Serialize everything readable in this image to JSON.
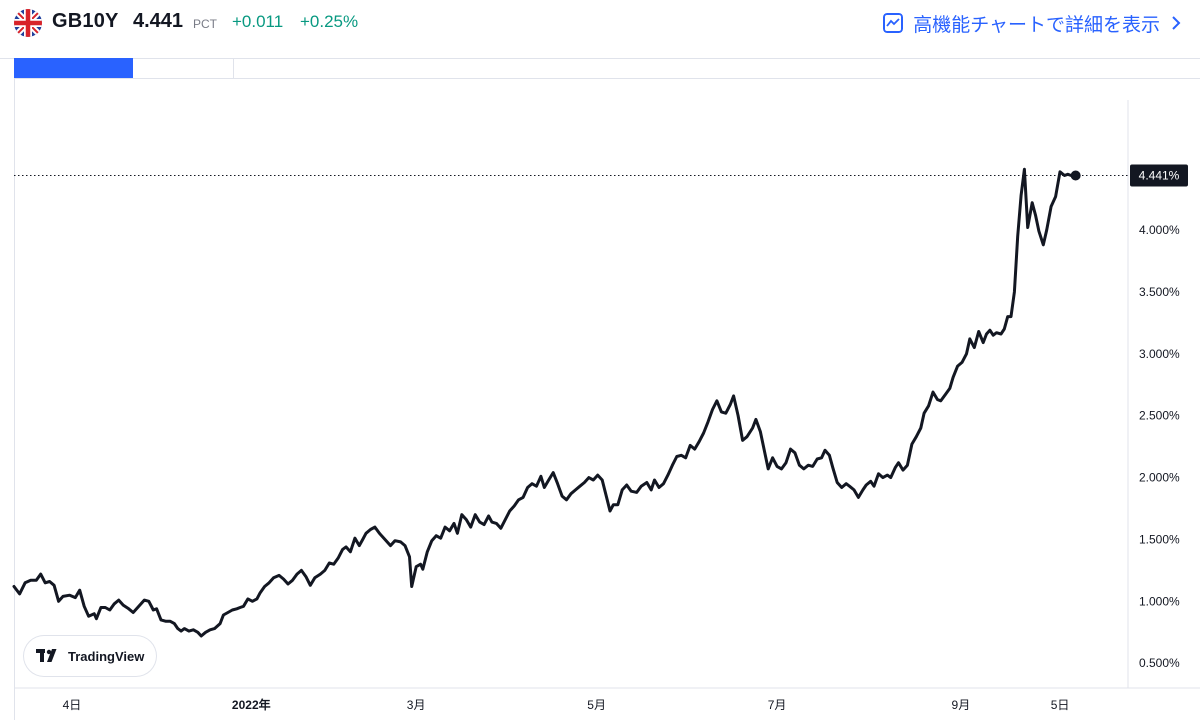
{
  "header": {
    "symbol": "GB10Y",
    "price": "4.441",
    "unit": "PCT",
    "change": "+0.011",
    "change_pct": "+0.25%",
    "advanced_link": "高機能チャートで詳細を表示",
    "flag_icon": "uk-flag-icon",
    "link_icon": "chart-line-icon",
    "chevron_icon": "chevron-right-icon",
    "up_color": "#089981",
    "accent_color": "#2962ff"
  },
  "watermark": {
    "text": "TradingView",
    "icon": "tradingview-logo-icon"
  },
  "chart_data": {
    "type": "line",
    "line_color": "#131722",
    "last_value_label": "4.441%",
    "ylim": [
      0.3,
      5.05
    ],
    "y_ticks": [
      {
        "value": 0.5,
        "label": "0.500%"
      },
      {
        "value": 1.0,
        "label": "1.000%"
      },
      {
        "value": 1.5,
        "label": "1.500%"
      },
      {
        "value": 2.0,
        "label": "2.000%"
      },
      {
        "value": 2.5,
        "label": "2.500%"
      },
      {
        "value": 3.0,
        "label": "3.000%"
      },
      {
        "value": 3.5,
        "label": "3.500%"
      },
      {
        "value": 4.0,
        "label": "4.000%"
      }
    ],
    "x_ticks": [
      {
        "t": 0.052,
        "label": "4日",
        "bold": false
      },
      {
        "t": 0.213,
        "label": "2022年",
        "bold": true
      },
      {
        "t": 0.361,
        "label": "3月",
        "bold": false
      },
      {
        "t": 0.523,
        "label": "5月",
        "bold": false
      },
      {
        "t": 0.685,
        "label": "7月",
        "bold": false
      },
      {
        "t": 0.85,
        "label": "9月",
        "bold": false
      },
      {
        "t": 0.939,
        "label": "5日",
        "bold": false
      }
    ],
    "series": [
      {
        "points": [
          [
            0.0,
            1.12
          ],
          [
            0.005,
            1.06
          ],
          [
            0.01,
            1.15
          ],
          [
            0.015,
            1.17
          ],
          [
            0.02,
            1.17
          ],
          [
            0.024,
            1.22
          ],
          [
            0.028,
            1.15
          ],
          [
            0.032,
            1.16
          ],
          [
            0.036,
            1.13
          ],
          [
            0.04,
            1.0
          ],
          [
            0.044,
            1.04
          ],
          [
            0.05,
            1.05
          ],
          [
            0.055,
            1.03
          ],
          [
            0.059,
            1.09
          ],
          [
            0.063,
            0.96
          ],
          [
            0.067,
            0.88
          ],
          [
            0.072,
            0.9
          ],
          [
            0.074,
            0.86
          ],
          [
            0.078,
            0.95
          ],
          [
            0.082,
            0.95
          ],
          [
            0.086,
            0.93
          ],
          [
            0.09,
            0.98
          ],
          [
            0.094,
            1.01
          ],
          [
            0.098,
            0.97
          ],
          [
            0.103,
            0.94
          ],
          [
            0.107,
            0.91
          ],
          [
            0.112,
            0.96
          ],
          [
            0.117,
            1.01
          ],
          [
            0.121,
            1.0
          ],
          [
            0.125,
            0.93
          ],
          [
            0.128,
            0.94
          ],
          [
            0.132,
            0.85
          ],
          [
            0.136,
            0.84
          ],
          [
            0.14,
            0.84
          ],
          [
            0.144,
            0.82
          ],
          [
            0.147,
            0.78
          ],
          [
            0.15,
            0.76
          ],
          [
            0.153,
            0.78
          ],
          [
            0.157,
            0.76
          ],
          [
            0.161,
            0.77
          ],
          [
            0.165,
            0.75
          ],
          [
            0.168,
            0.72
          ],
          [
            0.172,
            0.75
          ],
          [
            0.176,
            0.77
          ],
          [
            0.18,
            0.78
          ],
          [
            0.185,
            0.82
          ],
          [
            0.188,
            0.89
          ],
          [
            0.192,
            0.91
          ],
          [
            0.196,
            0.93
          ],
          [
            0.2,
            0.94
          ],
          [
            0.203,
            0.95
          ],
          [
            0.206,
            0.96
          ],
          [
            0.21,
            1.02
          ],
          [
            0.214,
            1.0
          ],
          [
            0.218,
            1.02
          ],
          [
            0.221,
            1.07
          ],
          [
            0.225,
            1.12
          ],
          [
            0.229,
            1.15
          ],
          [
            0.233,
            1.19
          ],
          [
            0.238,
            1.21
          ],
          [
            0.242,
            1.18
          ],
          [
            0.246,
            1.14
          ],
          [
            0.25,
            1.17
          ],
          [
            0.254,
            1.22
          ],
          [
            0.258,
            1.25
          ],
          [
            0.262,
            1.2
          ],
          [
            0.266,
            1.13
          ],
          [
            0.27,
            1.19
          ],
          [
            0.275,
            1.22
          ],
          [
            0.279,
            1.25
          ],
          [
            0.283,
            1.31
          ],
          [
            0.287,
            1.3
          ],
          [
            0.291,
            1.35
          ],
          [
            0.295,
            1.42
          ],
          [
            0.298,
            1.44
          ],
          [
            0.302,
            1.4
          ],
          [
            0.306,
            1.51
          ],
          [
            0.31,
            1.45
          ],
          [
            0.313,
            1.5
          ],
          [
            0.316,
            1.55
          ],
          [
            0.32,
            1.58
          ],
          [
            0.324,
            1.6
          ],
          [
            0.328,
            1.55
          ],
          [
            0.333,
            1.5
          ],
          [
            0.338,
            1.45
          ],
          [
            0.342,
            1.49
          ],
          [
            0.347,
            1.48
          ],
          [
            0.351,
            1.45
          ],
          [
            0.355,
            1.36
          ],
          [
            0.357,
            1.12
          ],
          [
            0.361,
            1.28
          ],
          [
            0.365,
            1.3
          ],
          [
            0.367,
            1.26
          ],
          [
            0.371,
            1.4
          ],
          [
            0.375,
            1.49
          ],
          [
            0.379,
            1.53
          ],
          [
            0.383,
            1.51
          ],
          [
            0.387,
            1.6
          ],
          [
            0.391,
            1.57
          ],
          [
            0.395,
            1.63
          ],
          [
            0.398,
            1.55
          ],
          [
            0.402,
            1.7
          ],
          [
            0.406,
            1.66
          ],
          [
            0.41,
            1.6
          ],
          [
            0.414,
            1.7
          ],
          [
            0.418,
            1.64
          ],
          [
            0.422,
            1.62
          ],
          [
            0.426,
            1.69
          ],
          [
            0.429,
            1.64
          ],
          [
            0.433,
            1.63
          ],
          [
            0.437,
            1.59
          ],
          [
            0.441,
            1.66
          ],
          [
            0.445,
            1.73
          ],
          [
            0.449,
            1.77
          ],
          [
            0.453,
            1.82
          ],
          [
            0.457,
            1.84
          ],
          [
            0.461,
            1.92
          ],
          [
            0.465,
            1.95
          ],
          [
            0.469,
            1.93
          ],
          [
            0.473,
            2.01
          ],
          [
            0.476,
            1.92
          ],
          [
            0.48,
            1.98
          ],
          [
            0.484,
            2.04
          ],
          [
            0.488,
            1.95
          ],
          [
            0.492,
            1.85
          ],
          [
            0.496,
            1.82
          ],
          [
            0.5,
            1.87
          ],
          [
            0.504,
            1.9
          ],
          [
            0.508,
            1.93
          ],
          [
            0.512,
            1.96
          ],
          [
            0.516,
            2.0
          ],
          [
            0.52,
            1.98
          ],
          [
            0.524,
            2.02
          ],
          [
            0.528,
            1.98
          ],
          [
            0.532,
            1.84
          ],
          [
            0.535,
            1.73
          ],
          [
            0.538,
            1.78
          ],
          [
            0.542,
            1.78
          ],
          [
            0.546,
            1.9
          ],
          [
            0.55,
            1.94
          ],
          [
            0.554,
            1.89
          ],
          [
            0.559,
            1.88
          ],
          [
            0.563,
            1.93
          ],
          [
            0.568,
            1.96
          ],
          [
            0.572,
            1.9
          ],
          [
            0.575,
            1.98
          ],
          [
            0.579,
            1.92
          ],
          [
            0.583,
            1.95
          ],
          [
            0.587,
            2.02
          ],
          [
            0.591,
            2.1
          ],
          [
            0.595,
            2.17
          ],
          [
            0.599,
            2.18
          ],
          [
            0.603,
            2.16
          ],
          [
            0.607,
            2.26
          ],
          [
            0.611,
            2.23
          ],
          [
            0.615,
            2.29
          ],
          [
            0.619,
            2.36
          ],
          [
            0.623,
            2.45
          ],
          [
            0.627,
            2.55
          ],
          [
            0.631,
            2.62
          ],
          [
            0.635,
            2.53
          ],
          [
            0.639,
            2.52
          ],
          [
            0.643,
            2.59
          ],
          [
            0.646,
            2.66
          ],
          [
            0.65,
            2.5
          ],
          [
            0.654,
            2.3
          ],
          [
            0.658,
            2.33
          ],
          [
            0.663,
            2.4
          ],
          [
            0.666,
            2.47
          ],
          [
            0.67,
            2.37
          ],
          [
            0.674,
            2.2
          ],
          [
            0.677,
            2.07
          ],
          [
            0.681,
            2.16
          ],
          [
            0.685,
            2.09
          ],
          [
            0.689,
            2.07
          ],
          [
            0.693,
            2.12
          ],
          [
            0.697,
            2.23
          ],
          [
            0.701,
            2.2
          ],
          [
            0.705,
            2.1
          ],
          [
            0.709,
            2.07
          ],
          [
            0.713,
            2.1
          ],
          [
            0.717,
            2.09
          ],
          [
            0.721,
            2.15
          ],
          [
            0.725,
            2.16
          ],
          [
            0.728,
            2.22
          ],
          [
            0.732,
            2.18
          ],
          [
            0.735,
            2.08
          ],
          [
            0.739,
            1.96
          ],
          [
            0.743,
            1.92
          ],
          [
            0.747,
            1.95
          ],
          [
            0.75,
            1.93
          ],
          [
            0.754,
            1.9
          ],
          [
            0.758,
            1.84
          ],
          [
            0.762,
            1.9
          ],
          [
            0.765,
            1.94
          ],
          [
            0.769,
            1.97
          ],
          [
            0.772,
            1.93
          ],
          [
            0.776,
            2.03
          ],
          [
            0.78,
            2.0
          ],
          [
            0.784,
            2.02
          ],
          [
            0.787,
            2.0
          ],
          [
            0.791,
            2.08
          ],
          [
            0.794,
            2.12
          ],
          [
            0.798,
            2.06
          ],
          [
            0.802,
            2.1
          ],
          [
            0.806,
            2.27
          ],
          [
            0.81,
            2.33
          ],
          [
            0.814,
            2.4
          ],
          [
            0.817,
            2.52
          ],
          [
            0.821,
            2.58
          ],
          [
            0.825,
            2.69
          ],
          [
            0.829,
            2.63
          ],
          [
            0.832,
            2.62
          ],
          [
            0.836,
            2.67
          ],
          [
            0.84,
            2.72
          ],
          [
            0.843,
            2.81
          ],
          [
            0.847,
            2.9
          ],
          [
            0.851,
            2.93
          ],
          [
            0.855,
            3.0
          ],
          [
            0.858,
            3.12
          ],
          [
            0.862,
            3.05
          ],
          [
            0.866,
            3.18
          ],
          [
            0.87,
            3.09
          ],
          [
            0.873,
            3.16
          ],
          [
            0.876,
            3.19
          ],
          [
            0.879,
            3.15
          ],
          [
            0.882,
            3.17
          ],
          [
            0.886,
            3.16
          ],
          [
            0.889,
            3.2
          ],
          [
            0.892,
            3.3
          ],
          [
            0.895,
            3.3
          ],
          [
            0.898,
            3.5
          ],
          [
            0.901,
            3.95
          ],
          [
            0.904,
            4.28
          ],
          [
            0.907,
            4.49
          ],
          [
            0.91,
            4.02
          ],
          [
            0.914,
            4.22
          ],
          [
            0.917,
            4.12
          ],
          [
            0.92,
            3.99
          ],
          [
            0.924,
            3.88
          ],
          [
            0.927,
            4.0
          ],
          [
            0.931,
            4.19
          ],
          [
            0.935,
            4.27
          ],
          [
            0.939,
            4.47
          ],
          [
            0.943,
            4.44
          ],
          [
            0.946,
            4.45
          ],
          [
            0.949,
            4.44
          ],
          [
            0.953,
            4.44
          ]
        ]
      }
    ]
  }
}
